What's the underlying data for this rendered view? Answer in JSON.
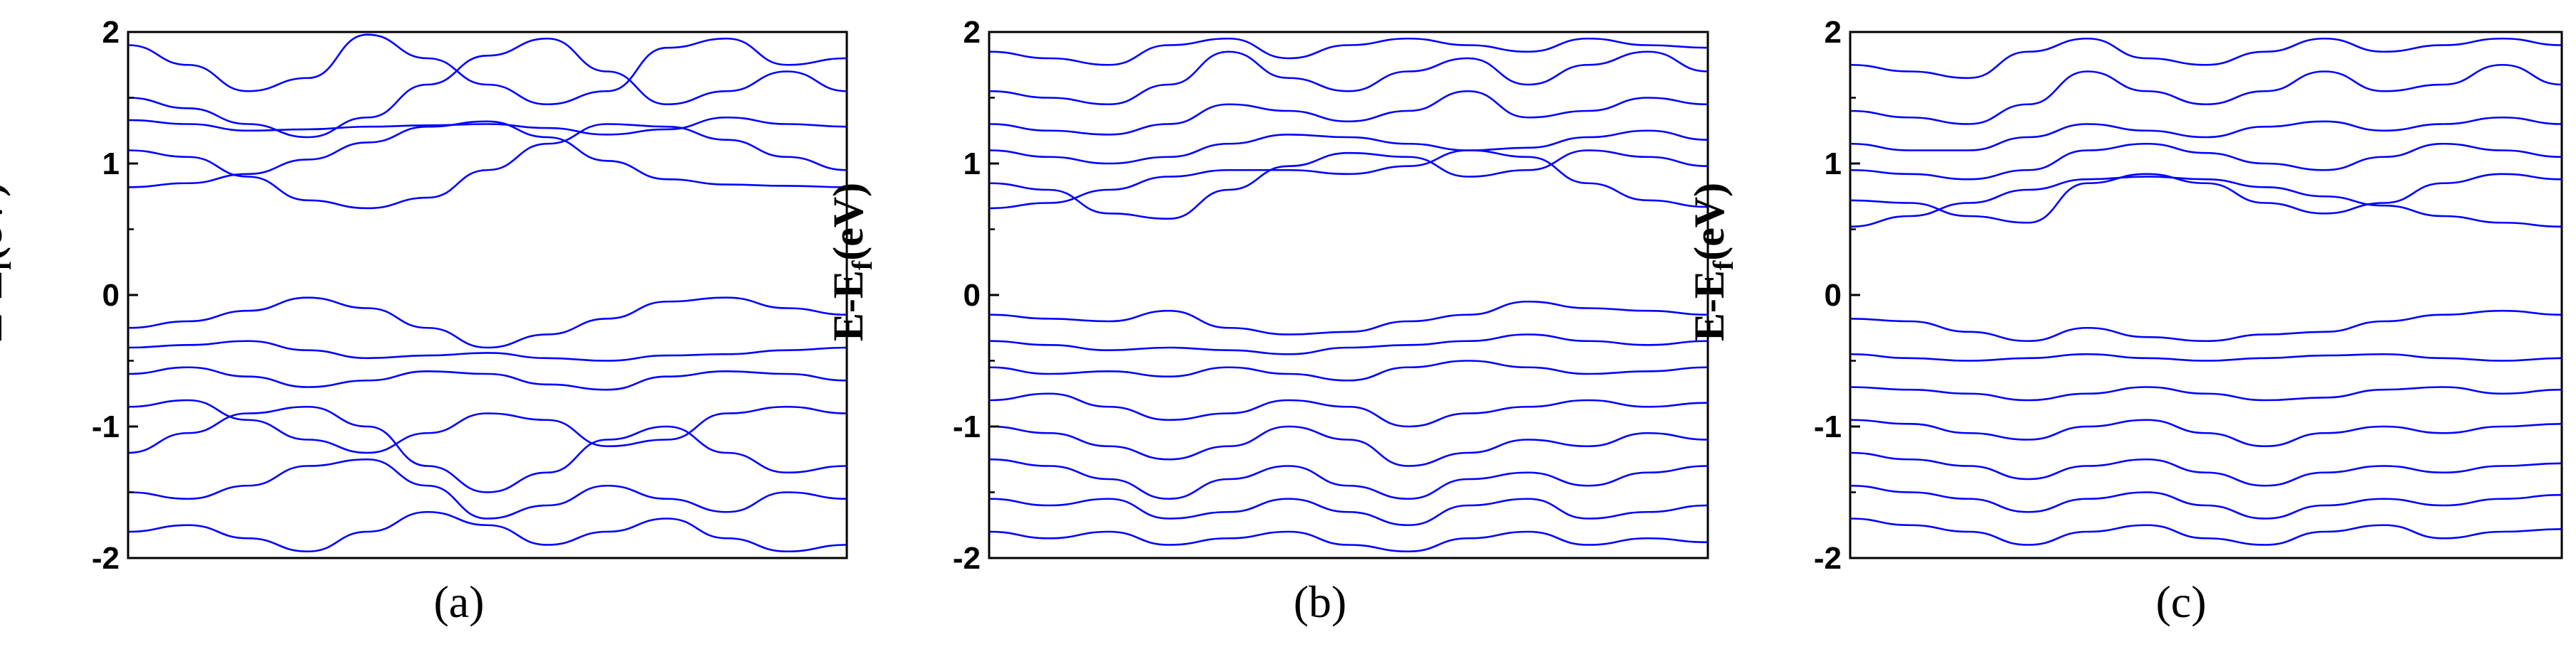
{
  "chart_data": [
    {
      "type": "line",
      "panel_label": "(a)",
      "ylabel_main": "E-E",
      "ylabel_sub": "f",
      "ylabel_unit": "(eV)",
      "ylim": [
        -2,
        2
      ],
      "yticks": [
        -2,
        -1,
        0,
        1,
        2
      ],
      "ytick_labels": [
        "-2",
        "-1",
        "0",
        "1",
        "2"
      ],
      "grid": false,
      "band_color": "#0000ff",
      "conduction_band_minimum": 0.66,
      "valence_band_maximum": -0.02,
      "series": [
        {
          "values": [
            0.82,
            0.85,
            0.92,
            1.03,
            1.16,
            1.28,
            1.32,
            1.2,
            1.02,
            0.88,
            0.84,
            0.83,
            0.82
          ]
        },
        {
          "values": [
            1.1,
            1.05,
            0.9,
            0.72,
            0.66,
            0.74,
            0.95,
            1.15,
            1.3,
            1.28,
            1.18,
            1.05,
            0.95
          ]
        },
        {
          "values": [
            1.33,
            1.3,
            1.25,
            1.26,
            1.28,
            1.29,
            1.3,
            1.27,
            1.22,
            1.26,
            1.35,
            1.3,
            1.28
          ]
        },
        {
          "values": [
            1.5,
            1.42,
            1.3,
            1.2,
            1.35,
            1.6,
            1.82,
            1.95,
            1.7,
            1.45,
            1.55,
            1.7,
            1.55
          ]
        },
        {
          "values": [
            1.9,
            1.75,
            1.55,
            1.65,
            1.98,
            1.8,
            1.6,
            1.45,
            1.55,
            1.88,
            1.95,
            1.75,
            1.8
          ]
        },
        {
          "values": [
            -0.25,
            -0.2,
            -0.12,
            -0.02,
            -0.1,
            -0.25,
            -0.4,
            -0.3,
            -0.18,
            -0.05,
            -0.02,
            -0.1,
            -0.15
          ]
        },
        {
          "values": [
            -0.4,
            -0.38,
            -0.35,
            -0.42,
            -0.48,
            -0.46,
            -0.44,
            -0.48,
            -0.5,
            -0.46,
            -0.45,
            -0.42,
            -0.4
          ]
        },
        {
          "values": [
            -0.6,
            -0.55,
            -0.62,
            -0.7,
            -0.65,
            -0.58,
            -0.6,
            -0.68,
            -0.72,
            -0.62,
            -0.58,
            -0.6,
            -0.65
          ]
        },
        {
          "values": [
            -0.85,
            -0.8,
            -0.95,
            -1.1,
            -1.2,
            -1.05,
            -0.9,
            -0.95,
            -1.15,
            -1.1,
            -0.9,
            -0.85,
            -0.9
          ]
        },
        {
          "values": [
            -1.2,
            -1.05,
            -0.9,
            -0.85,
            -1.0,
            -1.3,
            -1.5,
            -1.35,
            -1.1,
            -1.0,
            -1.2,
            -1.35,
            -1.3
          ]
        },
        {
          "values": [
            -1.5,
            -1.55,
            -1.45,
            -1.3,
            -1.25,
            -1.45,
            -1.7,
            -1.6,
            -1.45,
            -1.55,
            -1.65,
            -1.5,
            -1.55
          ]
        },
        {
          "values": [
            -1.8,
            -1.75,
            -1.85,
            -1.95,
            -1.8,
            -1.65,
            -1.75,
            -1.9,
            -1.8,
            -1.7,
            -1.85,
            -1.95,
            -1.9
          ]
        }
      ]
    },
    {
      "type": "line",
      "panel_label": "(b)",
      "ylabel_main": "E-E",
      "ylabel_sub": "f",
      "ylabel_unit": "(eV)",
      "ylim": [
        -2,
        2
      ],
      "yticks": [
        -2,
        -1,
        0,
        1,
        2
      ],
      "ytick_labels": [
        "-2",
        "-1",
        "0",
        "1",
        "2"
      ],
      "grid": false,
      "band_color": "#0000ff",
      "conduction_band_minimum": 0.58,
      "valence_band_maximum": -0.05,
      "series": [
        {
          "values": [
            0.66,
            0.7,
            0.8,
            0.9,
            0.95,
            0.95,
            0.92,
            0.98,
            1.1,
            1.05,
            0.85,
            0.72,
            0.67
          ]
        },
        {
          "values": [
            0.85,
            0.8,
            0.62,
            0.58,
            0.8,
            0.98,
            1.08,
            1.05,
            0.9,
            0.95,
            1.1,
            1.05,
            0.98
          ]
        },
        {
          "values": [
            1.1,
            1.05,
            1.0,
            1.05,
            1.15,
            1.22,
            1.2,
            1.15,
            1.1,
            1.12,
            1.2,
            1.25,
            1.18
          ]
        },
        {
          "values": [
            1.3,
            1.25,
            1.22,
            1.3,
            1.45,
            1.4,
            1.32,
            1.4,
            1.55,
            1.35,
            1.4,
            1.5,
            1.45
          ]
        },
        {
          "values": [
            1.55,
            1.5,
            1.45,
            1.6,
            1.85,
            1.65,
            1.55,
            1.7,
            1.8,
            1.6,
            1.75,
            1.85,
            1.7
          ]
        },
        {
          "values": [
            1.85,
            1.8,
            1.75,
            1.9,
            1.95,
            1.8,
            1.9,
            1.95,
            1.9,
            1.85,
            1.95,
            1.9,
            1.88
          ]
        },
        {
          "values": [
            -0.15,
            -0.18,
            -0.2,
            -0.12,
            -0.25,
            -0.3,
            -0.28,
            -0.2,
            -0.15,
            -0.05,
            -0.1,
            -0.12,
            -0.15
          ]
        },
        {
          "values": [
            -0.35,
            -0.38,
            -0.42,
            -0.4,
            -0.42,
            -0.45,
            -0.4,
            -0.38,
            -0.35,
            -0.3,
            -0.35,
            -0.38,
            -0.35
          ]
        },
        {
          "values": [
            -0.55,
            -0.6,
            -0.58,
            -0.62,
            -0.55,
            -0.6,
            -0.65,
            -0.55,
            -0.5,
            -0.55,
            -0.6,
            -0.58,
            -0.55
          ]
        },
        {
          "values": [
            -0.8,
            -0.75,
            -0.85,
            -0.95,
            -0.9,
            -0.8,
            -0.85,
            -1.0,
            -0.9,
            -0.85,
            -0.8,
            -0.85,
            -0.82
          ]
        },
        {
          "values": [
            -1.0,
            -1.05,
            -1.15,
            -1.25,
            -1.15,
            -1.0,
            -1.1,
            -1.3,
            -1.2,
            -1.1,
            -1.15,
            -1.05,
            -1.1
          ]
        },
        {
          "values": [
            -1.25,
            -1.3,
            -1.4,
            -1.55,
            -1.4,
            -1.3,
            -1.45,
            -1.55,
            -1.4,
            -1.35,
            -1.45,
            -1.35,
            -1.3
          ]
        },
        {
          "values": [
            -1.55,
            -1.6,
            -1.55,
            -1.7,
            -1.65,
            -1.55,
            -1.65,
            -1.75,
            -1.6,
            -1.55,
            -1.7,
            -1.65,
            -1.6
          ]
        },
        {
          "values": [
            -1.8,
            -1.85,
            -1.8,
            -1.9,
            -1.85,
            -1.8,
            -1.9,
            -1.95,
            -1.85,
            -1.8,
            -1.9,
            -1.85,
            -1.88
          ]
        }
      ]
    },
    {
      "type": "line",
      "panel_label": "(c)",
      "ylabel_main": "E-E",
      "ylabel_sub": "f",
      "ylabel_unit": "(eV)",
      "ylim": [
        -2,
        2
      ],
      "yticks": [
        -2,
        -1,
        0,
        1,
        2
      ],
      "ytick_labels": [
        "-2",
        "-1",
        "0",
        "1",
        "2"
      ],
      "grid": false,
      "band_color": "#0000ff",
      "conduction_band_minimum": 0.52,
      "valence_band_maximum": -0.12,
      "series": [
        {
          "values": [
            0.52,
            0.6,
            0.7,
            0.8,
            0.88,
            0.9,
            0.88,
            0.82,
            0.75,
            0.68,
            0.6,
            0.55,
            0.52
          ]
        },
        {
          "values": [
            0.72,
            0.7,
            0.6,
            0.55,
            0.85,
            0.92,
            0.85,
            0.7,
            0.62,
            0.7,
            0.85,
            0.92,
            0.88
          ]
        },
        {
          "values": [
            0.95,
            0.92,
            0.88,
            0.95,
            1.1,
            1.15,
            1.08,
            1.0,
            0.95,
            1.05,
            1.15,
            1.1,
            1.05
          ]
        },
        {
          "values": [
            1.15,
            1.1,
            1.1,
            1.2,
            1.3,
            1.25,
            1.2,
            1.28,
            1.32,
            1.25,
            1.3,
            1.35,
            1.3
          ]
        },
        {
          "values": [
            1.4,
            1.35,
            1.3,
            1.45,
            1.7,
            1.55,
            1.45,
            1.55,
            1.7,
            1.55,
            1.6,
            1.75,
            1.6
          ]
        },
        {
          "values": [
            1.75,
            1.7,
            1.65,
            1.85,
            1.95,
            1.8,
            1.75,
            1.85,
            1.95,
            1.85,
            1.9,
            1.95,
            1.9
          ]
        },
        {
          "values": [
            -0.18,
            -0.2,
            -0.28,
            -0.35,
            -0.25,
            -0.32,
            -0.35,
            -0.3,
            -0.28,
            -0.2,
            -0.15,
            -0.12,
            -0.15
          ]
        },
        {
          "values": [
            -0.45,
            -0.48,
            -0.5,
            -0.48,
            -0.45,
            -0.48,
            -0.5,
            -0.48,
            -0.46,
            -0.45,
            -0.48,
            -0.5,
            -0.48
          ]
        },
        {
          "values": [
            -0.7,
            -0.72,
            -0.75,
            -0.8,
            -0.75,
            -0.7,
            -0.75,
            -0.8,
            -0.78,
            -0.72,
            -0.7,
            -0.75,
            -0.72
          ]
        },
        {
          "values": [
            -0.95,
            -0.98,
            -1.05,
            -1.1,
            -1.0,
            -0.95,
            -1.05,
            -1.15,
            -1.05,
            -1.0,
            -1.05,
            -1.0,
            -0.98
          ]
        },
        {
          "values": [
            -1.2,
            -1.25,
            -1.3,
            -1.4,
            -1.3,
            -1.25,
            -1.35,
            -1.45,
            -1.35,
            -1.3,
            -1.35,
            -1.3,
            -1.28
          ]
        },
        {
          "values": [
            -1.45,
            -1.5,
            -1.55,
            -1.65,
            -1.55,
            -1.5,
            -1.6,
            -1.7,
            -1.6,
            -1.55,
            -1.6,
            -1.55,
            -1.52
          ]
        },
        {
          "values": [
            -1.7,
            -1.75,
            -1.8,
            -1.9,
            -1.8,
            -1.75,
            -1.85,
            -1.9,
            -1.8,
            -1.75,
            -1.85,
            -1.8,
            -1.78
          ]
        }
      ]
    }
  ]
}
